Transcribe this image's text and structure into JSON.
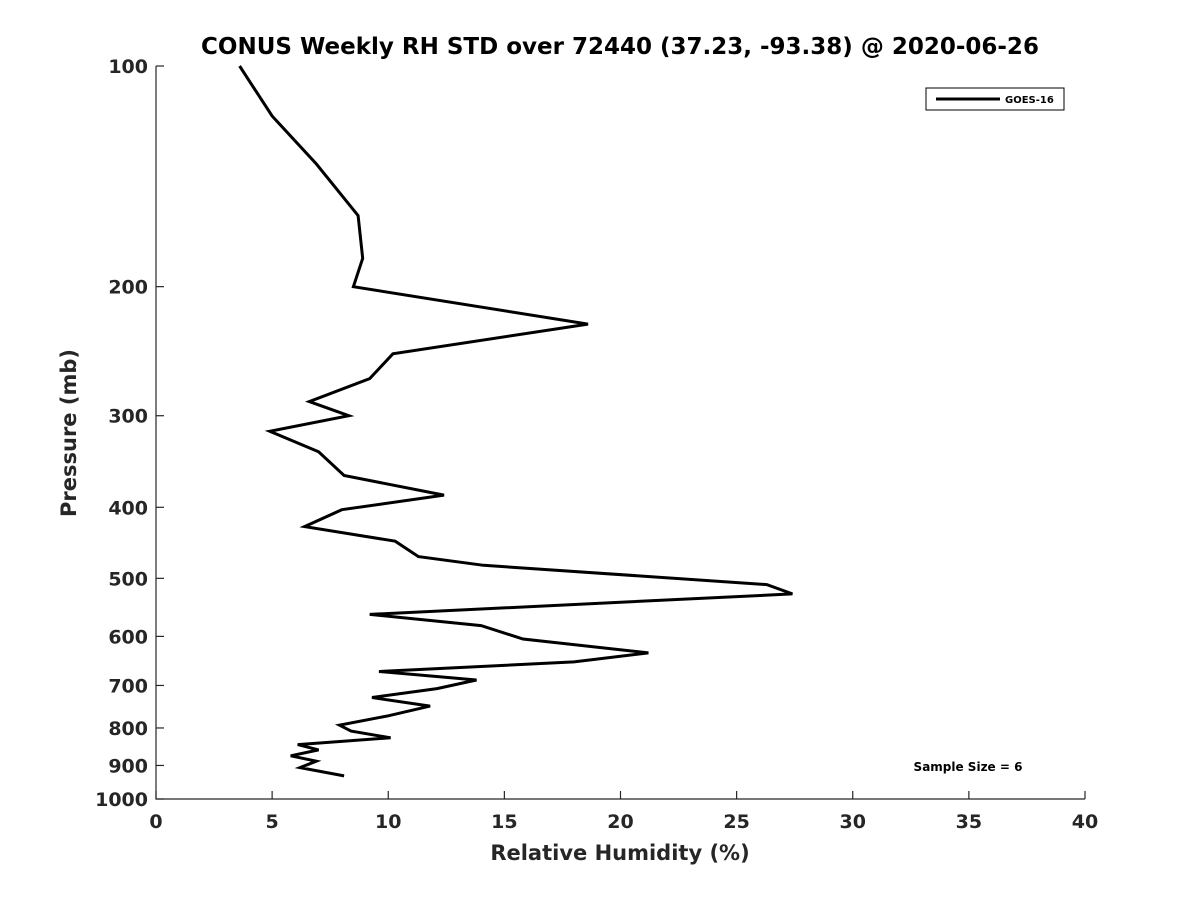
{
  "chart_data": {
    "type": "line",
    "title": "CONUS Weekly RH STD over 72440 (37.23, -93.38) @ 2020-06-26",
    "xlabel": "Relative Humidity (%)",
    "ylabel": "Pressure (mb)",
    "xlim": [
      0,
      40
    ],
    "ylim": [
      100,
      1000
    ],
    "yscale": "log",
    "y_reversed": true,
    "grid": false,
    "legend_placement": "top-right",
    "xticks": [
      0,
      5,
      10,
      15,
      20,
      25,
      30,
      35,
      40
    ],
    "xtick_labels": [
      "0",
      "5",
      "10",
      "15",
      "20",
      "25",
      "30",
      "35",
      "40"
    ],
    "yticks": [
      100,
      200,
      300,
      400,
      500,
      600,
      700,
      800,
      900,
      1000
    ],
    "ytick_labels": [
      "100",
      "200",
      "300",
      "400",
      "500",
      "600",
      "700",
      "800",
      "900",
      "1000"
    ],
    "series": [
      {
        "name": "GOES-16",
        "color": "#000000",
        "x": [
          3.6,
          5.0,
          6.9,
          8.7,
          8.9,
          8.5,
          18.6,
          10.2,
          9.2,
          6.6,
          8.3,
          4.9,
          7.0,
          8.1,
          12.4,
          8.0,
          6.4,
          10.3,
          11.3,
          14.1,
          26.3,
          27.4,
          9.2,
          14.0,
          15.8,
          21.2,
          18.0,
          9.6,
          13.8,
          12.1,
          9.3,
          11.8,
          10.0,
          7.9,
          8.4,
          10.1,
          6.1,
          7.0,
          5.8,
          6.9,
          6.2,
          8.1
        ],
        "y": [
          100,
          117,
          136,
          160,
          183,
          200,
          225,
          247,
          267,
          287,
          300,
          315,
          336,
          362,
          385,
          403,
          425,
          445,
          467,
          480,
          510,
          525,
          560,
          580,
          605,
          632,
          650,
          670,
          688,
          707,
          727,
          747,
          770,
          793,
          808,
          825,
          843,
          857,
          873,
          888,
          906,
          930
        ]
      }
    ],
    "annotations": [
      "Sample Size = 6"
    ]
  }
}
